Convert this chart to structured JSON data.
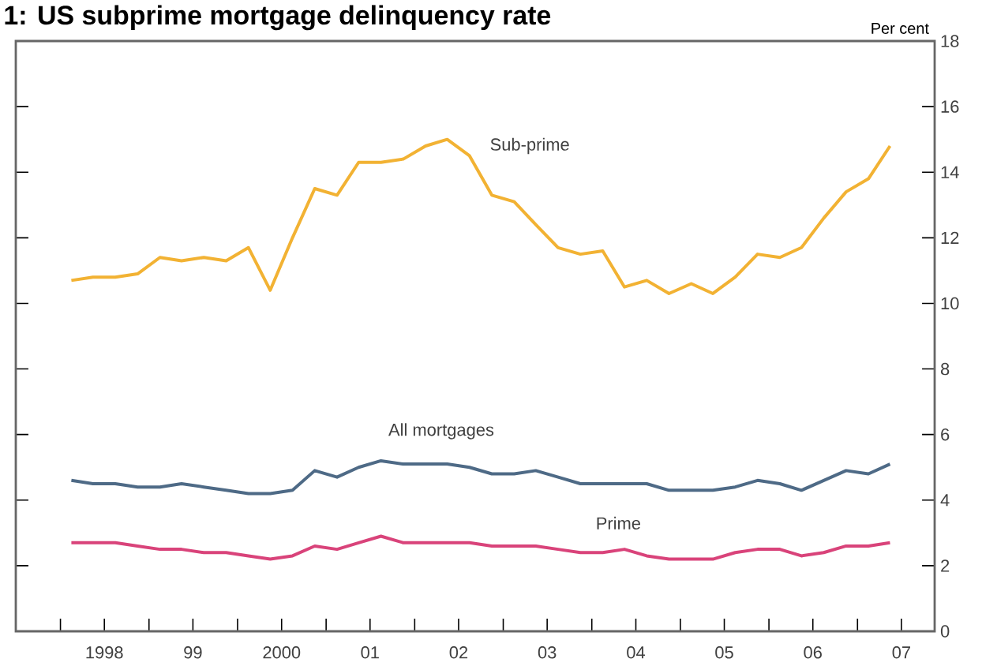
{
  "chart_data": {
    "type": "line",
    "title": "1: US subprime mortgage delinquency rate",
    "ylabel": "Per cent",
    "x": [
      "1998-02-15",
      "1998-05-15",
      "1998-08-15",
      "1998-11-15",
      "1999-02-15",
      "1999-05-15",
      "1999-08-15",
      "1999-11-15",
      "2000-02-15",
      "2000-05-15",
      "2000-08-15",
      "2000-11-15",
      "2001-02-15",
      "2001-05-15",
      "2001-08-15",
      "2001-11-15",
      "2002-02-15",
      "2002-05-15",
      "2002-08-15",
      "2002-11-15",
      "2003-02-15",
      "2003-05-15",
      "2003-08-15",
      "2003-11-15",
      "2004-02-15",
      "2004-05-15",
      "2004-08-15",
      "2004-11-15",
      "2005-02-15",
      "2005-05-15",
      "2005-08-15",
      "2005-11-15",
      "2006-02-15",
      "2006-05-15",
      "2006-08-15",
      "2006-11-15",
      "2007-02-15",
      "2007-05-15"
    ],
    "series": [
      {
        "name": "Sub-prime",
        "color": "#f2b233",
        "values": [
          10.7,
          10.8,
          10.8,
          10.9,
          11.4,
          11.3,
          11.4,
          11.3,
          11.7,
          10.4,
          12.0,
          13.5,
          13.3,
          14.3,
          14.3,
          14.4,
          14.8,
          15.0,
          14.5,
          13.3,
          13.1,
          12.4,
          11.7,
          11.5,
          11.6,
          10.5,
          10.7,
          10.3,
          10.6,
          10.3,
          10.8,
          11.5,
          11.4,
          11.7,
          12.6,
          13.4,
          13.8,
          14.8
        ]
      },
      {
        "name": "All mortgages",
        "color": "#4e6a86",
        "values": [
          4.6,
          4.5,
          4.5,
          4.4,
          4.4,
          4.5,
          4.4,
          4.3,
          4.2,
          4.2,
          4.3,
          4.9,
          4.7,
          5.0,
          5.2,
          5.1,
          5.1,
          5.1,
          5.0,
          4.8,
          4.8,
          4.9,
          4.7,
          4.5,
          4.5,
          4.5,
          4.5,
          4.3,
          4.3,
          4.3,
          4.4,
          4.6,
          4.5,
          4.3,
          4.6,
          4.9,
          4.8,
          5.1
        ]
      },
      {
        "name": "Prime",
        "color": "#d9437a",
        "values": [
          2.7,
          2.7,
          2.7,
          2.6,
          2.5,
          2.5,
          2.4,
          2.4,
          2.3,
          2.2,
          2.3,
          2.6,
          2.5,
          2.7,
          2.9,
          2.7,
          2.7,
          2.7,
          2.7,
          2.6,
          2.6,
          2.6,
          2.5,
          2.4,
          2.4,
          2.5,
          2.3,
          2.2,
          2.2,
          2.2,
          2.4,
          2.5,
          2.5,
          2.3,
          2.4,
          2.6,
          2.6,
          2.7
        ]
      }
    ],
    "xlim": [
      "1997-07-01",
      "2007-11-15"
    ],
    "xticks": [
      {
        "value": "1998-01-01",
        "label": null
      },
      {
        "value": "1998-07-01",
        "label": "1998"
      },
      {
        "value": "1999-01-01",
        "label": null
      },
      {
        "value": "1999-07-01",
        "label": "99"
      },
      {
        "value": "2000-01-01",
        "label": null
      },
      {
        "value": "2000-07-01",
        "label": "2000"
      },
      {
        "value": "2001-01-01",
        "label": null
      },
      {
        "value": "2001-07-01",
        "label": "01"
      },
      {
        "value": "2002-01-01",
        "label": null
      },
      {
        "value": "2002-07-01",
        "label": "02"
      },
      {
        "value": "2003-01-01",
        "label": null
      },
      {
        "value": "2003-07-01",
        "label": "03"
      },
      {
        "value": "2004-01-01",
        "label": null
      },
      {
        "value": "2004-07-01",
        "label": "04"
      },
      {
        "value": "2005-01-01",
        "label": null
      },
      {
        "value": "2005-07-01",
        "label": "05"
      },
      {
        "value": "2006-01-01",
        "label": null
      },
      {
        "value": "2006-07-01",
        "label": "06"
      },
      {
        "value": "2007-01-01",
        "label": null
      },
      {
        "value": "2007-07-01",
        "label": "07"
      }
    ],
    "ylim": [
      0,
      18
    ],
    "yticks": [
      0,
      2,
      4,
      6,
      8,
      10,
      12,
      14,
      16,
      18
    ],
    "grid": false,
    "legend": false,
    "marker": "none",
    "line_style": "solid"
  }
}
